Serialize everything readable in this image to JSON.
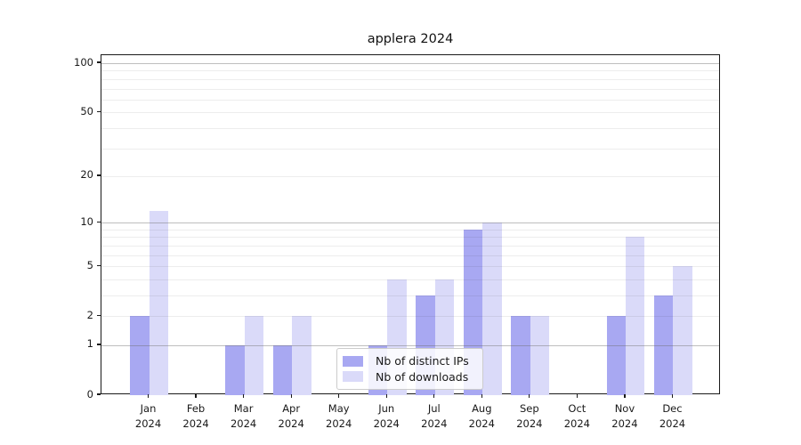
{
  "title": "applera 2024",
  "chart_data": {
    "type": "bar",
    "title": "applera 2024",
    "categories": [
      "Jan",
      "Feb",
      "Mar",
      "Apr",
      "May",
      "Jun",
      "Jul",
      "Aug",
      "Sep",
      "Oct",
      "Nov",
      "Dec"
    ],
    "category_sub_label": "2024",
    "series": [
      {
        "name": "Nb of distinct IPs",
        "color": "#a8a8f2",
        "values": [
          2,
          0,
          1,
          1,
          0,
          1,
          3,
          9,
          2,
          0,
          2,
          3
        ]
      },
      {
        "name": "Nb of downloads",
        "color": "#dadaf9",
        "values": [
          12,
          0,
          2,
          2,
          0,
          4,
          4,
          10,
          2,
          0,
          8,
          5
        ]
      }
    ],
    "xlabel": "",
    "ylabel": "",
    "y_axis": {
      "scale": "log1p",
      "tick_labels": [
        0,
        1,
        2,
        5,
        10,
        20,
        50,
        100
      ],
      "major_gridlines": [
        1,
        10,
        100
      ],
      "minor_gridlines": [
        2,
        3,
        4,
        5,
        6,
        7,
        8,
        9,
        20,
        30,
        40,
        50,
        60,
        70,
        80,
        90
      ],
      "ymin": 0,
      "ymax": 112
    },
    "grid": true,
    "legend": {
      "position": "lower center",
      "entries": [
        "Nb of distinct IPs",
        "Nb of downloads"
      ]
    },
    "colors": {
      "major_grid": "rgba(110,110,110,0.45)",
      "minor_grid": "rgba(60,60,60,0.09)",
      "spine": "#1a1a1a",
      "background": "#ffffff"
    }
  }
}
